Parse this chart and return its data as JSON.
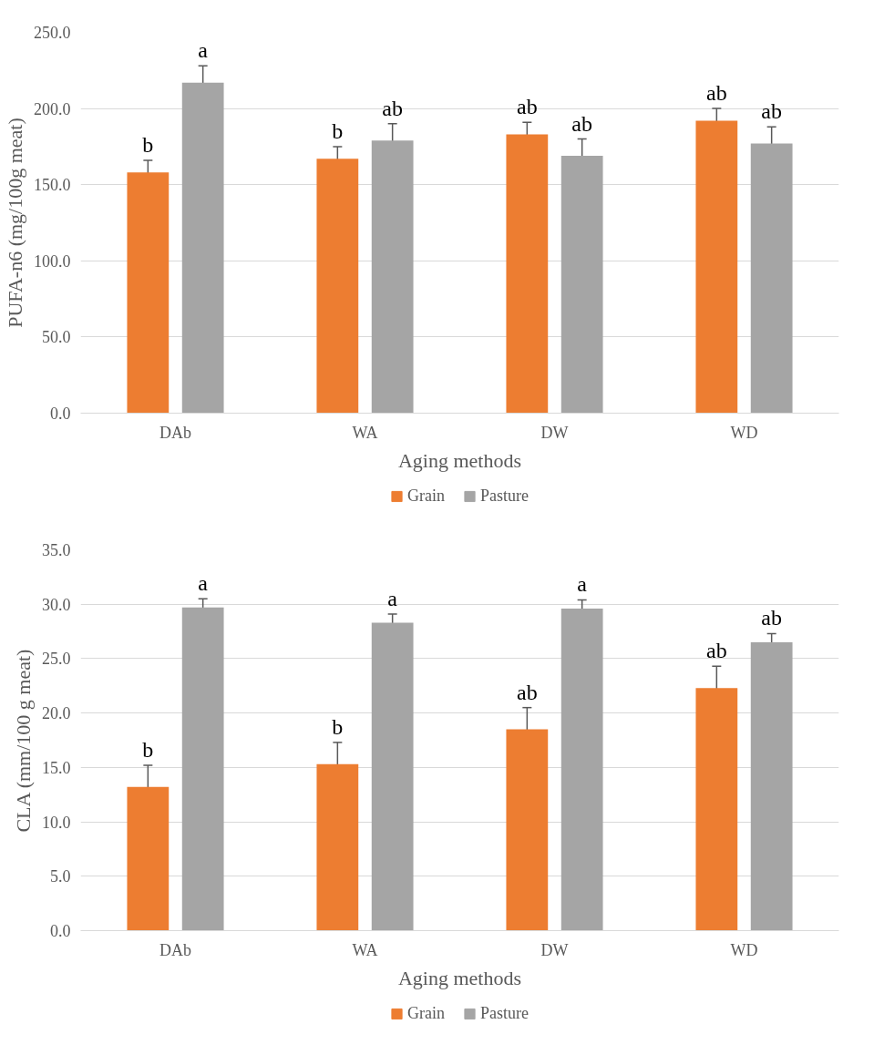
{
  "chart_data": [
    {
      "type": "bar",
      "xlabel": "Aging methods",
      "ylabel": "PUFA-n6 (mg/100g meat)",
      "categories": [
        "DAb",
        "WA",
        "DW",
        "WD"
      ],
      "series": [
        {
          "name": "Grain",
          "color": "#ed7d31",
          "values": [
            158,
            167,
            183,
            192
          ],
          "errors": [
            8,
            8,
            8,
            8
          ]
        },
        {
          "name": "Pasture",
          "color": "#a5a5a5",
          "values": [
            217,
            179,
            169,
            177
          ],
          "errors": [
            11,
            11,
            11,
            11
          ]
        }
      ],
      "ylim": [
        0,
        250
      ],
      "yticks": [
        {
          "value": 0,
          "label": "0.0"
        },
        {
          "value": 50,
          "label": "50.0"
        },
        {
          "value": 100,
          "label": "100.0"
        },
        {
          "value": 150,
          "label": "150.0"
        },
        {
          "value": 200,
          "label": "200.0"
        },
        {
          "value": 250,
          "label": "250.0"
        }
      ],
      "grid": "y",
      "legend": "bottom",
      "annotations": [
        "b",
        "a",
        "b",
        "ab",
        "ab",
        "ab",
        "ab",
        "ab"
      ]
    },
    {
      "type": "bar",
      "xlabel": "Aging methods",
      "ylabel": "CLA (mm/100 g meat)",
      "categories": [
        "DAb",
        "WA",
        "DW",
        "WD"
      ],
      "series": [
        {
          "name": "Grain",
          "color": "#ed7d31",
          "values": [
            13.2,
            15.3,
            18.5,
            22.3
          ],
          "errors": [
            2.0,
            2.0,
            2.0,
            2.0
          ]
        },
        {
          "name": "Pasture",
          "color": "#a5a5a5",
          "values": [
            29.7,
            28.3,
            29.6,
            26.5
          ],
          "errors": [
            0.8,
            0.8,
            0.8,
            0.8
          ]
        }
      ],
      "ylim": [
        0,
        35
      ],
      "yticks": [
        {
          "value": 0,
          "label": "0.0"
        },
        {
          "value": 5,
          "label": "5.0"
        },
        {
          "value": 10,
          "label": "10.0"
        },
        {
          "value": 15,
          "label": "15.0"
        },
        {
          "value": 20,
          "label": "20.0"
        },
        {
          "value": 25,
          "label": "25.0"
        },
        {
          "value": 30,
          "label": "30.0"
        },
        {
          "value": 35,
          "label": "35.0"
        }
      ],
      "grid": "y",
      "legend": "bottom",
      "annotations": [
        "b",
        "a",
        "b",
        "a",
        "ab",
        "a",
        "ab",
        "ab"
      ]
    }
  ]
}
